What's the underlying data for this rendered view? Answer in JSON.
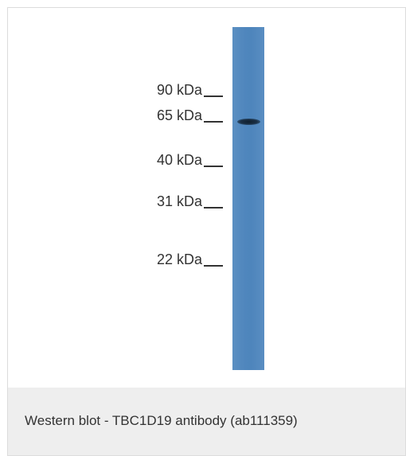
{
  "markers": [
    {
      "label": "90 kDa"
    },
    {
      "label": "65 kDa"
    },
    {
      "label": "40 kDa"
    },
    {
      "label": "31 kDa"
    },
    {
      "label": "22 kDa"
    }
  ],
  "caption": "Western blot - TBC1D19 antibody (ab111359)",
  "colors": {
    "lane": "#4f86bd",
    "band": "#0f1f2e",
    "caption_background": "#eeeeee",
    "text": "#333333"
  }
}
